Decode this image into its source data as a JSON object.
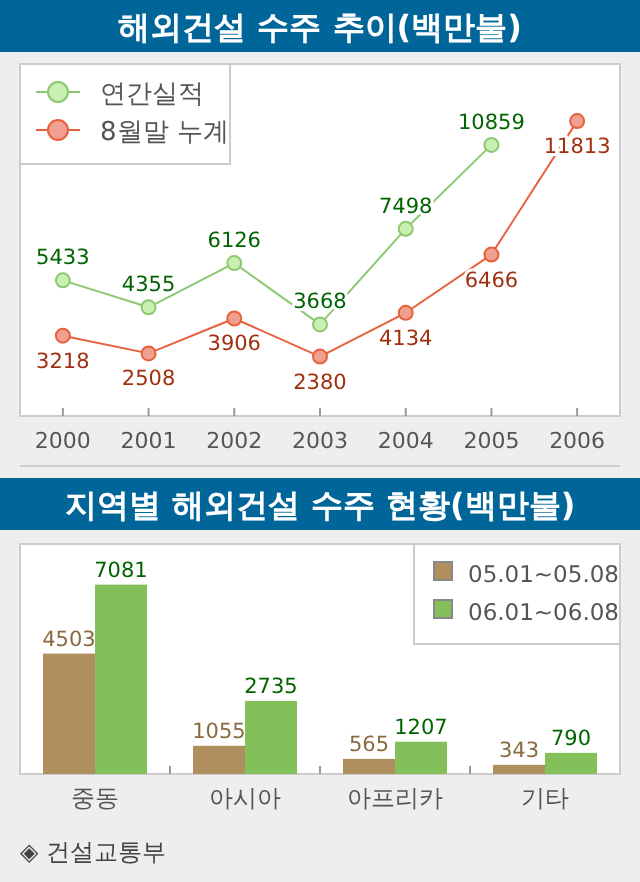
{
  "chart_data": [
    {
      "type": "line",
      "title": "해외건설 수주 추이(백만불)",
      "categories": [
        "2000",
        "2001",
        "2002",
        "2003",
        "2004",
        "2005",
        "2006"
      ],
      "series": [
        {
          "name": "연간실적",
          "color": "#8cc870",
          "values": [
            5433,
            4355,
            6126,
            3668,
            7498,
            10859,
            null
          ]
        },
        {
          "name": "8월말 누계",
          "color": "#e8603c",
          "values": [
            3218,
            2508,
            3906,
            2380,
            4134,
            6466,
            11813
          ]
        }
      ],
      "ylim": [
        0,
        14100
      ],
      "data_labels": true,
      "legend": "top left",
      "marker": "circle"
    },
    {
      "type": "bar",
      "title": "지역별 해외건설 수주 현황(백만불)",
      "categories": [
        "중동",
        "아시아",
        "아프리카",
        "기타"
      ],
      "series": [
        {
          "name": "05.01~05.08",
          "color": "#b08f5f",
          "values": [
            4503,
            1055,
            565,
            343
          ]
        },
        {
          "name": "06.01~06.08",
          "color": "#84c05a",
          "values": [
            7081,
            2735,
            1207,
            790
          ]
        }
      ],
      "ylim": [
        0,
        8600
      ],
      "data_labels": true,
      "legend": "top right",
      "annotations": [
        "◈ 건설교통부"
      ]
    }
  ]
}
